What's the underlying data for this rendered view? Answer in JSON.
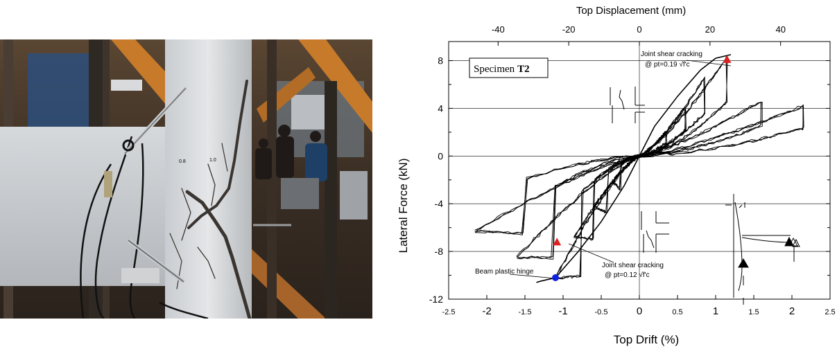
{
  "photo": {
    "label_1": "0.8",
    "label_2": "1.0"
  },
  "chart_data": {
    "type": "line",
    "top_axis_label": "Top Displacement (mm)",
    "top_ticks": [
      "-40",
      "-20",
      "0",
      "20",
      "40"
    ],
    "top_tick_values": [
      -40,
      -20,
      0,
      20,
      40
    ],
    "xlabel": "Top Drift (%)",
    "x_ticks": [
      "-2.5",
      "-2",
      "-1.5",
      "-1",
      "-0.5",
      "0",
      "0.5",
      "1",
      "1.5",
      "2",
      "2.5"
    ],
    "x_tick_values": [
      -2.5,
      -2,
      -1.5,
      -1,
      -0.5,
      0,
      0.5,
      1,
      1.5,
      2,
      2.5
    ],
    "xlim": [
      -2.5,
      2.5
    ],
    "ylabel": "Lateral Force (kN)",
    "y_ticks": [
      "8",
      "4",
      "0",
      "-4",
      "-8",
      "-12"
    ],
    "y_tick_values": [
      8,
      4,
      0,
      -4,
      -8,
      -12
    ],
    "ylim": [
      -12,
      9.6
    ],
    "grid": true,
    "specimen_prefix": "Specimen",
    "specimen_id": "T2",
    "annotations": [
      {
        "id": "jsc-pos",
        "line1": "Joint shear cracking",
        "line2": "@ pt=0.19 √f'c",
        "x": 1.15,
        "y": 8.1,
        "marker": "triangle",
        "color": "#e02020"
      },
      {
        "id": "jsc-neg",
        "line1": "Joint shear cracking",
        "line2": "@ pt=0.12 √f'c",
        "x": -1.08,
        "y": -7.2,
        "marker": "triangle",
        "color": "#e02020"
      },
      {
        "id": "bph",
        "line1": "Beam plastic hinge",
        "line2": "",
        "x": -1.1,
        "y": -10.2,
        "marker": "circle",
        "color": "#1020e0"
      }
    ],
    "backbone": {
      "x": [
        -1.35,
        -1.3,
        -1.1,
        -0.8,
        -0.5,
        -0.2,
        0,
        0.2,
        0.5,
        0.8,
        1.0,
        1.2
      ],
      "y": [
        -10.6,
        -10.5,
        -10.2,
        -8.0,
        -5.5,
        -2.5,
        0,
        2.5,
        5.0,
        7.2,
        8.2,
        8.5
      ]
    },
    "loops": [
      {
        "amp_pos": 0.35,
        "f_pos": 2.0,
        "amp_neg": -0.35,
        "f_neg": -2.2
      },
      {
        "amp_pos": 0.6,
        "f_pos": 4.0,
        "amp_neg": -0.6,
        "f_neg": -4.3
      },
      {
        "amp_pos": 0.85,
        "f_pos": 6.5,
        "amp_neg": -0.85,
        "f_neg": -6.8
      },
      {
        "amp_pos": 1.15,
        "f_pos": 8.3,
        "amp_neg": -1.1,
        "f_neg": -10.2
      },
      {
        "amp_pos": 1.6,
        "f_pos": 4.6,
        "amp_neg": -1.6,
        "f_neg": -8.5
      },
      {
        "amp_pos": 2.15,
        "f_pos": 4.2,
        "amp_neg": -2.15,
        "f_neg": -6.3
      }
    ]
  },
  "colors": {
    "trace": "#000000",
    "marker_red": "#e02020",
    "marker_blue": "#1020e0"
  }
}
